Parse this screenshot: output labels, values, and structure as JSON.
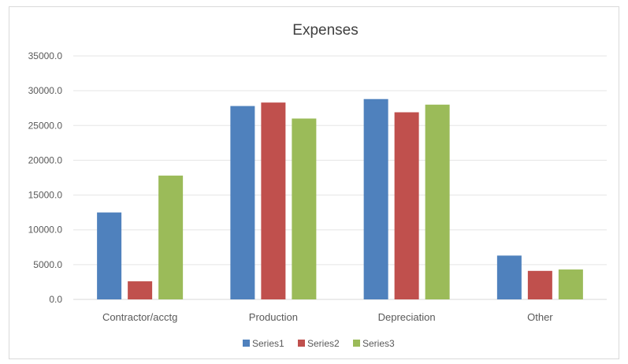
{
  "chart_data": {
    "type": "bar",
    "title": "Expenses",
    "categories": [
      "Contractor/acctg",
      "Production",
      "Depreciation",
      "Other"
    ],
    "series": [
      {
        "name": "Series1",
        "color": "#4f81bd",
        "values": [
          12500,
          27800,
          28800,
          6300
        ]
      },
      {
        "name": "Series2",
        "color": "#c0504d",
        "values": [
          2600,
          28300,
          26900,
          4100
        ]
      },
      {
        "name": "Series3",
        "color": "#9bbb59",
        "values": [
          17800,
          26000,
          28000,
          4300
        ]
      }
    ],
    "yticks": [
      "0.0",
      "5000.0",
      "10000.0",
      "15000.0",
      "20000.0",
      "25000.0",
      "30000.0",
      "35000.0"
    ],
    "ylim": [
      0,
      35000
    ],
    "grid": true,
    "legend_position": "bottom"
  }
}
